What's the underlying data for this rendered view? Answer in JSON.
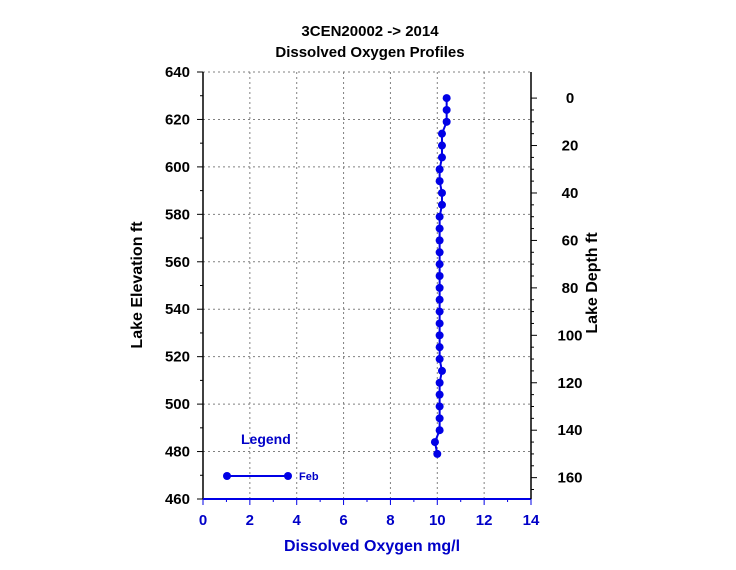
{
  "chart_data": {
    "type": "line",
    "title_line1": "3CEN20002  ->  2014",
    "title_line2": "Dissolved Oxygen Profiles",
    "xlabel": "Dissolved  Oxygen  mg/l",
    "ylabel": "Lake  Elevation  ft",
    "y2label": "Lake  Depth  ft",
    "xlim": [
      0,
      14
    ],
    "ylim": [
      460,
      640
    ],
    "y2_surface_elevation": 629,
    "x_ticks": [
      0,
      2,
      4,
      6,
      8,
      10,
      12,
      14
    ],
    "y_ticks": [
      460,
      480,
      500,
      520,
      540,
      560,
      580,
      600,
      620,
      640
    ],
    "y2_ticks": [
      0,
      20,
      40,
      60,
      80,
      100,
      120,
      140,
      160
    ],
    "grid": true,
    "legend": {
      "title": "Legend",
      "position": "bottom-left"
    },
    "series": [
      {
        "name": "Feb",
        "color": "#0000e6",
        "points": [
          {
            "x": 10.4,
            "y": 629
          },
          {
            "x": 10.4,
            "y": 624
          },
          {
            "x": 10.4,
            "y": 619
          },
          {
            "x": 10.2,
            "y": 614
          },
          {
            "x": 10.2,
            "y": 609
          },
          {
            "x": 10.2,
            "y": 604
          },
          {
            "x": 10.1,
            "y": 599
          },
          {
            "x": 10.1,
            "y": 594
          },
          {
            "x": 10.2,
            "y": 589
          },
          {
            "x": 10.2,
            "y": 584
          },
          {
            "x": 10.1,
            "y": 579
          },
          {
            "x": 10.1,
            "y": 574
          },
          {
            "x": 10.1,
            "y": 569
          },
          {
            "x": 10.1,
            "y": 564
          },
          {
            "x": 10.1,
            "y": 559
          },
          {
            "x": 10.1,
            "y": 554
          },
          {
            "x": 10.1,
            "y": 549
          },
          {
            "x": 10.1,
            "y": 544
          },
          {
            "x": 10.1,
            "y": 539
          },
          {
            "x": 10.1,
            "y": 534
          },
          {
            "x": 10.1,
            "y": 529
          },
          {
            "x": 10.1,
            "y": 524
          },
          {
            "x": 10.1,
            "y": 519
          },
          {
            "x": 10.2,
            "y": 514
          },
          {
            "x": 10.1,
            "y": 509
          },
          {
            "x": 10.1,
            "y": 504
          },
          {
            "x": 10.1,
            "y": 499
          },
          {
            "x": 10.1,
            "y": 494
          },
          {
            "x": 10.1,
            "y": 489
          },
          {
            "x": 9.9,
            "y": 484
          },
          {
            "x": 10.0,
            "y": 479
          }
        ]
      }
    ]
  }
}
